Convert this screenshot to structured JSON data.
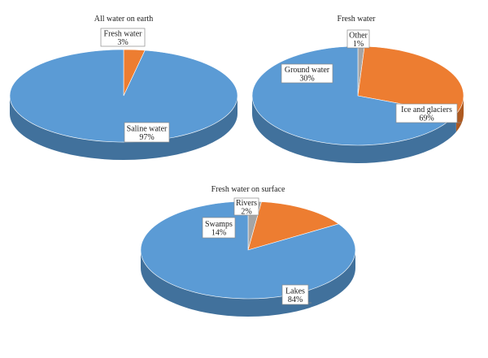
{
  "colors": {
    "blue_top": "#5b9bd5",
    "blue_side": "#41719c",
    "orange_top": "#ed7d31",
    "orange_side": "#ae5a21",
    "gray_top": "#a5a5a5",
    "gray_side": "#7c7c7c"
  },
  "chart_data": [
    {
      "type": "pie",
      "style": "3d",
      "title": "All water on earth",
      "slices": [
        {
          "label": "Fresh water",
          "value": 3,
          "value_label": "3%",
          "color": "#ed7d31"
        },
        {
          "label": "Saline water",
          "value": 97,
          "value_label": "97%",
          "color": "#5b9bd5"
        }
      ]
    },
    {
      "type": "pie",
      "style": "3d",
      "title": "Fresh water",
      "slices": [
        {
          "label": "Other",
          "value": 1,
          "value_label": "1%",
          "color": "#a5a5a5"
        },
        {
          "label": "Ground water",
          "value": 30,
          "value_label": "30%",
          "color": "#ed7d31"
        },
        {
          "label": "Ice and glaciers",
          "value": 69,
          "value_label": "69%",
          "color": "#5b9bd5"
        }
      ]
    },
    {
      "type": "pie",
      "style": "3d",
      "title": "Fresh water on surface",
      "slices": [
        {
          "label": "Rivers",
          "value": 2,
          "value_label": "2%",
          "color": "#a5a5a5"
        },
        {
          "label": "Swamps",
          "value": 14,
          "value_label": "14%",
          "color": "#ed7d31"
        },
        {
          "label": "Lakes",
          "value": 84,
          "value_label": "84%",
          "color": "#5b9bd5"
        }
      ]
    }
  ]
}
